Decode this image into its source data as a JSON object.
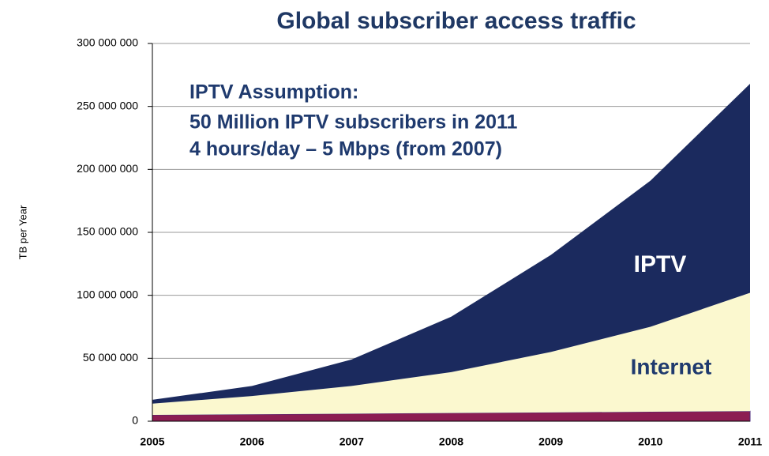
{
  "chart_data": {
    "type": "stacked-area",
    "title": "Global subscriber access traffic",
    "y_label": "TB per Year",
    "annotation": [
      "IPTV Assumption:",
      "50 Million IPTV subscribers in 2011",
      "4 hours/day – 5 Mbps (from 2007)"
    ],
    "categories": [
      "2005",
      "2006",
      "2007",
      "2008",
      "2009",
      "2010",
      "2011"
    ],
    "series": [
      {
        "color": "#8c1d52",
        "values": [
          5000000,
          5500000,
          6000000,
          6500000,
          7000000,
          7500000,
          8000000
        ]
      },
      {
        "name": "Internet",
        "color": "#fbf8cf",
        "values": [
          9000000,
          14500000,
          22000000,
          32500000,
          48000000,
          67500000,
          94000000
        ]
      },
      {
        "name": "IPTV",
        "color": "#1b2a5e",
        "values": [
          3000000,
          8000000,
          21000000,
          44000000,
          77000000,
          116000000,
          166000000
        ]
      }
    ],
    "ylim": [
      0,
      300000000
    ],
    "yticks": [
      0,
      {
        "value": 50000000,
        "label": "50 000 000"
      },
      {
        "value": 100000000,
        "label": "100 000 000"
      },
      {
        "value": 150000000,
        "label": "150 000 000"
      },
      {
        "value": 200000000,
        "label": "200 000 000"
      },
      {
        "value": 250000000,
        "label": "250 000 000"
      },
      {
        "value": 300000000,
        "label": "300 000 000"
      }
    ],
    "grid": true
  }
}
